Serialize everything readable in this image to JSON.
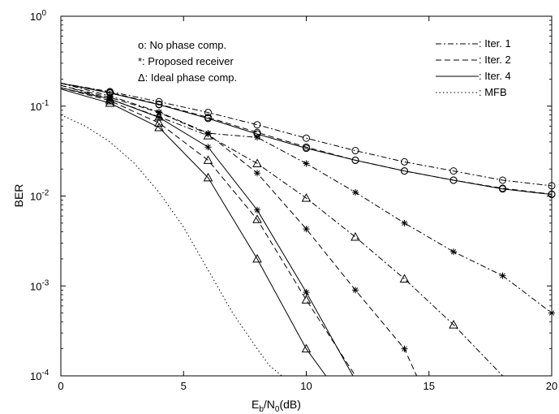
{
  "chart_data": {
    "type": "line",
    "xlabel": {
      "main": "E",
      "sub1": "b",
      "mid": "/N",
      "sub2": "0",
      "tail": "(dB)"
    },
    "ylabel": "BER",
    "xlim": [
      0,
      20
    ],
    "ylim": [
      0.0001,
      1
    ],
    "yscale": "log",
    "grid": false,
    "x_ticks": [
      0,
      5,
      10,
      15,
      20
    ],
    "y_ticks": [
      {
        "value": 0.0001,
        "base": "10",
        "exp": "-4"
      },
      {
        "value": 0.001,
        "base": "10",
        "exp": "-3"
      },
      {
        "value": 0.01,
        "base": "10",
        "exp": "-2"
      },
      {
        "value": 0.1,
        "base": "10",
        "exp": "-1"
      },
      {
        "value": 1,
        "base": "10",
        "exp": "0"
      }
    ],
    "marker_legend": [
      {
        "marker": "o",
        "text": "o: No phase comp."
      },
      {
        "marker": "*",
        "text": "*: Proposed receiver"
      },
      {
        "marker": "triangle",
        "text": "Δ: Ideal phase comp."
      }
    ],
    "line_legend": [
      {
        "dash": "dashdot",
        "text": ": Iter. 1"
      },
      {
        "dash": "dashed",
        "text": ": Iter. 2"
      },
      {
        "dash": "solid",
        "text": ": Iter. 4"
      },
      {
        "dash": "dotted",
        "text": ": MFB"
      }
    ],
    "series": [
      {
        "marker": "o",
        "dash": "dashdot",
        "x": [
          0,
          2,
          4,
          6,
          8,
          10,
          12,
          14,
          16,
          18,
          20
        ],
        "y": [
          0.18,
          0.145,
          0.112,
          0.085,
          0.062,
          0.044,
          0.032,
          0.024,
          0.019,
          0.015,
          0.013
        ]
      },
      {
        "marker": "o",
        "dash": "dashed",
        "x": [
          0,
          2,
          4,
          6,
          8,
          10,
          12,
          14,
          16,
          18,
          20
        ],
        "y": [
          0.18,
          0.142,
          0.105,
          0.075,
          0.051,
          0.035,
          0.025,
          0.019,
          0.015,
          0.0122,
          0.0105
        ]
      },
      {
        "marker": "o",
        "dash": "solid",
        "x": [
          0,
          2,
          4,
          6,
          8,
          10,
          12,
          14,
          16,
          18,
          20
        ],
        "y": [
          0.18,
          0.14,
          0.104,
          0.073,
          0.049,
          0.034,
          0.025,
          0.019,
          0.015,
          0.012,
          0.0104
        ]
      },
      {
        "marker": "*",
        "dash": "dashdot",
        "x": [
          0,
          2,
          4,
          6,
          8,
          10,
          12,
          14,
          16,
          18,
          20
        ],
        "y": [
          0.18,
          0.13,
          0.086,
          0.05,
          0.045,
          0.023,
          0.011,
          0.005,
          0.0024,
          0.0013,
          0.0005
        ]
      },
      {
        "marker": "*",
        "dash": "dashed",
        "x": [
          0,
          2,
          4,
          6,
          8,
          10,
          12,
          14,
          14.5
        ],
        "y": [
          0.17,
          0.125,
          0.085,
          0.049,
          0.018,
          0.0043,
          0.0009,
          0.0002,
          0.0001
        ]
      },
      {
        "marker": "*",
        "dash": "solid",
        "x": [
          0,
          2,
          4,
          6,
          8,
          10,
          11.9
        ],
        "y": [
          0.16,
          0.12,
          0.075,
          0.035,
          0.007,
          0.00085,
          0.0001
        ]
      },
      {
        "marker": "triangle",
        "dash": "dashdot",
        "x": [
          0,
          2,
          4,
          6,
          8,
          10,
          12,
          14,
          16,
          18
        ],
        "y": [
          0.17,
          0.12,
          0.076,
          0.047,
          0.023,
          0.0095,
          0.0035,
          0.0012,
          0.00037,
          0.0001
        ]
      },
      {
        "marker": "triangle",
        "dash": "dashed",
        "x": [
          0,
          2,
          4,
          6,
          8,
          10,
          12
        ],
        "y": [
          0.16,
          0.115,
          0.065,
          0.025,
          0.0055,
          0.0007,
          0.0001
        ]
      },
      {
        "marker": "triangle",
        "dash": "solid",
        "x": [
          0,
          2,
          4,
          6,
          8,
          10,
          10.8
        ],
        "y": [
          0.155,
          0.108,
          0.058,
          0.016,
          0.002,
          0.0002,
          0.0001
        ]
      },
      {
        "marker": "none",
        "dash": "dotted",
        "x": [
          0,
          1,
          2,
          3,
          4,
          5,
          6,
          7,
          8,
          8.5,
          9
        ],
        "y": [
          0.08,
          0.06,
          0.04,
          0.023,
          0.011,
          0.0045,
          0.0015,
          0.0005,
          0.0002,
          0.00013,
          0.0001
        ]
      }
    ]
  }
}
